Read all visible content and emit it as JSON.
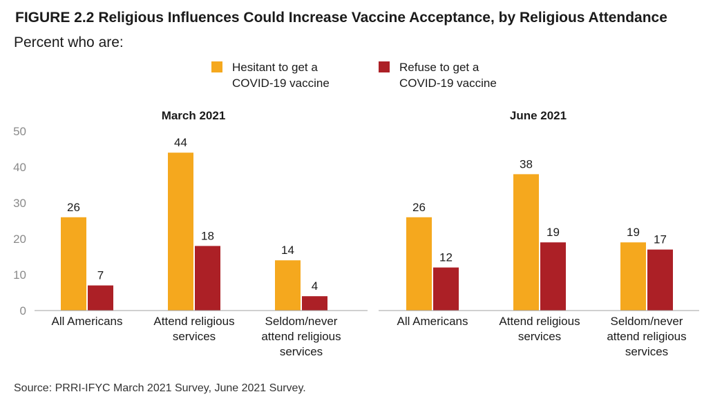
{
  "figure": {
    "number": "FIGURE 2.2",
    "title": "Religious Influences Could Increase Vaccine Acceptance, by Religious Attendance",
    "subtitle": "Percent who are:",
    "source": "Source: PRRI-IFYC March 2021 Survey, June 2021 Survey."
  },
  "legend": [
    {
      "line1": "Hesitant to get a",
      "line2": "COVID-19 vaccine",
      "color": "#F5A81E"
    },
    {
      "line1": "Refuse to get a",
      "line2": "COVID-19 vaccine",
      "color": "#AC2026"
    }
  ],
  "chart_data": [
    {
      "type": "bar",
      "title": "March 2021",
      "categories": [
        [
          "All Americans"
        ],
        [
          "Attend religious",
          "services"
        ],
        [
          "Seldom/never",
          "attend religious",
          "services"
        ]
      ],
      "series": [
        {
          "name": "Hesitant to get a COVID-19 vaccine",
          "color": "#F5A81E",
          "values": [
            26,
            44,
            14
          ]
        },
        {
          "name": "Refuse to get a COVID-19 vaccine",
          "color": "#AC2026",
          "values": [
            7,
            18,
            4
          ]
        }
      ],
      "ylim": [
        0,
        50
      ],
      "yticks": [
        0,
        10,
        20,
        30,
        40,
        50
      ],
      "show_yaxis": true,
      "grid": false
    },
    {
      "type": "bar",
      "title": "June 2021",
      "categories": [
        [
          "All Americans"
        ],
        [
          "Attend religious",
          "services"
        ],
        [
          "Seldom/never",
          "attend religious",
          "services"
        ]
      ],
      "series": [
        {
          "name": "Hesitant to get a COVID-19 vaccine",
          "color": "#F5A81E",
          "values": [
            26,
            38,
            19
          ]
        },
        {
          "name": "Refuse to get a COVID-19 vaccine",
          "color": "#AC2026",
          "values": [
            12,
            19,
            17
          ]
        }
      ],
      "ylim": [
        0,
        50
      ],
      "yticks": [],
      "show_yaxis": false,
      "grid": false
    }
  ]
}
